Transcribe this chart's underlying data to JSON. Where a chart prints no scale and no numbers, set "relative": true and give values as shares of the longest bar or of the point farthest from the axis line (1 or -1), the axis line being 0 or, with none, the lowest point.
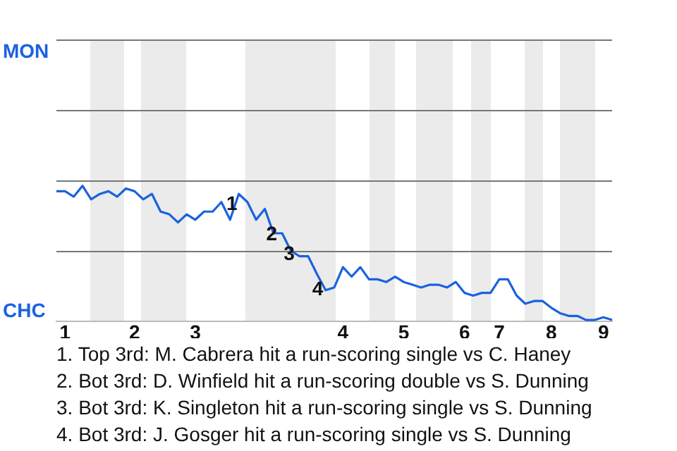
{
  "chart_data": {
    "type": "line",
    "relative": true,
    "categories": [
      null,
      "1",
      null,
      null,
      null,
      null,
      null,
      null,
      null,
      "2",
      null,
      null,
      null,
      null,
      null,
      null,
      "3",
      null,
      null,
      null,
      null,
      null,
      null,
      null,
      null,
      null,
      null,
      null,
      null,
      null,
      null,
      null,
      null,
      "4",
      null,
      null,
      null,
      null,
      null,
      null,
      "5",
      null,
      null,
      null,
      null,
      null,
      null,
      "6",
      null,
      null,
      null,
      "7",
      null,
      null,
      null,
      null,
      null,
      "8",
      null,
      null,
      null,
      null,
      null,
      "9",
      null
    ],
    "legend": false,
    "ref_lines": [
      {
        "axis": "y",
        "value": 0.52,
        "color": "#777777"
      }
    ],
    "marker": "none",
    "line_style": "solid",
    "series": [
      {
        "color": "#1a62e0",
        "values": [
          0.96,
          0.96,
          0.92,
          1,
          0.9,
          0.94,
          0.96,
          0.92,
          0.98,
          0.96,
          0.9,
          0.94,
          0.81,
          0.79,
          0.73,
          0.79,
          0.75,
          0.81,
          0.81,
          0.88,
          0.75,
          0.94,
          0.88,
          0.75,
          0.83,
          0.65,
          0.65,
          0.52,
          0.48,
          0.48,
          0.35,
          0.23,
          0.25,
          0.4,
          0.33,
          0.4,
          0.31,
          0.31,
          0.29,
          0.33,
          0.29,
          0.27,
          0.25,
          0.27,
          0.27,
          0.25,
          0.29,
          0.21,
          0.19,
          0.21,
          0.21,
          0.31,
          0.31,
          0.19,
          0.13,
          0.15,
          0.15,
          0.1,
          0.06,
          0.04,
          0.04,
          0.01,
          0.01,
          0.03,
          0.01
        ]
      }
    ],
    "annotations": [
      "MON",
      "CHC",
      {
        "text": "1",
        "y": 0.86
      },
      {
        "text": "2",
        "y": 0.64
      },
      {
        "text": "3",
        "y": 0.49
      },
      {
        "text": "4",
        "y": 0.23
      },
      "1. Top 3rd: M. Cabrera hit a run-scoring single vs C. Haney",
      "2. Bot 3rd: D. Winfield hit a run-scoring double vs S. Dunning",
      "3. Bot 3rd: K. Singleton hit a run-scoring single vs S. Dunning",
      "4. Bot 3rd: J. Gosger hit a run-scoring single vs S. Dunning"
    ]
  }
}
